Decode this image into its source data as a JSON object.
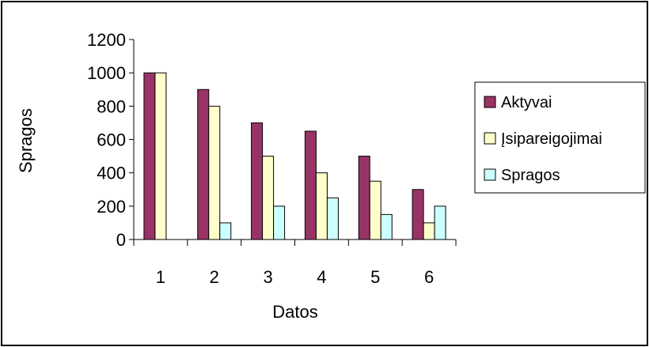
{
  "chart_data": {
    "type": "bar",
    "categories": [
      "1",
      "2",
      "3",
      "4",
      "5",
      "6"
    ],
    "series": [
      {
        "name": "Aktyvai",
        "color": "#993366",
        "values": [
          1000,
          900,
          700,
          650,
          500,
          300
        ]
      },
      {
        "name": "Įsipareigojimai",
        "color": "#FFFFCC",
        "values": [
          1000,
          800,
          500,
          400,
          350,
          100
        ]
      },
      {
        "name": "Spragos",
        "color": "#CCFFFF",
        "values": [
          0,
          100,
          200,
          250,
          150,
          200
        ]
      }
    ],
    "xlabel": "Datos",
    "ylabel": "Spragos",
    "ylim": [
      0,
      1200
    ],
    "yticks": [
      "0",
      "200",
      "400",
      "600",
      "800",
      "1000",
      "1200"
    ],
    "grid": false,
    "legend_position": "right"
  }
}
